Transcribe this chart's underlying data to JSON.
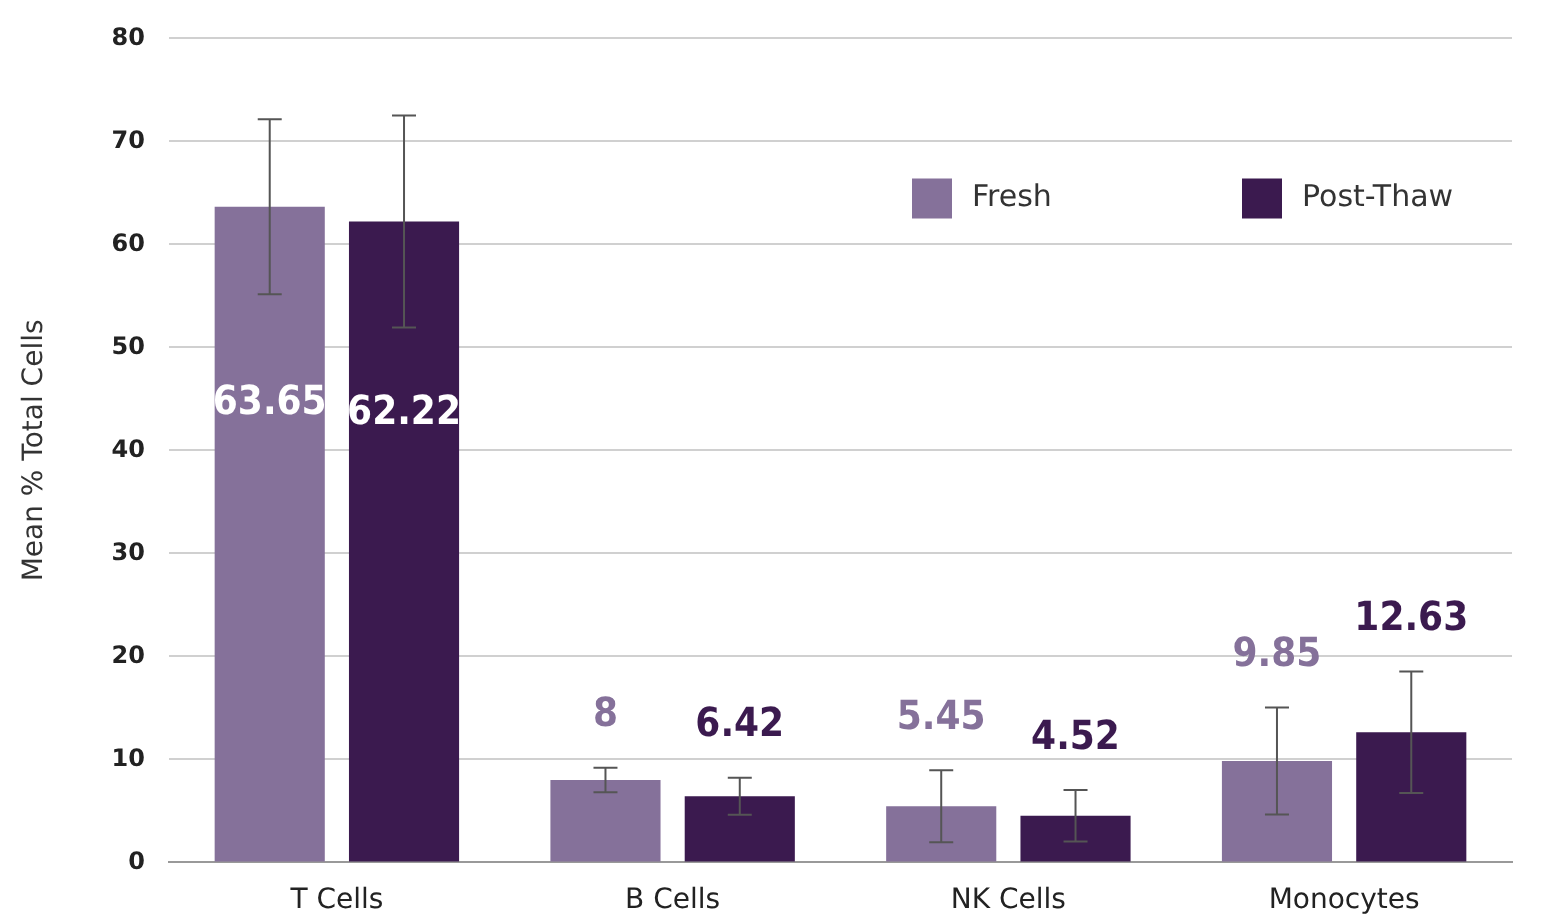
{
  "chart_data": {
    "type": "bar",
    "ylabel": "Mean % Total Cells",
    "categories": [
      "T Cells",
      "B Cells",
      "NK Cells",
      "Monocytes"
    ],
    "series": [
      {
        "name": "Fresh",
        "color": "#85719a",
        "values": [
          63.65,
          8,
          5.45,
          9.85
        ],
        "errors": [
          8.5,
          1.2,
          3.5,
          5.2
        ]
      },
      {
        "name": "Post-Thaw",
        "color": "#3b1a4f",
        "values": [
          62.22,
          6.42,
          4.52,
          12.63
        ],
        "errors": [
          10.3,
          1.8,
          2.5,
          5.9
        ]
      }
    ],
    "ylim": [
      0,
      80
    ],
    "yticks": [
      0,
      10,
      20,
      30,
      40,
      50,
      60,
      70,
      80
    ],
    "grid": "y",
    "legend": "top right",
    "data_labels": true
  }
}
